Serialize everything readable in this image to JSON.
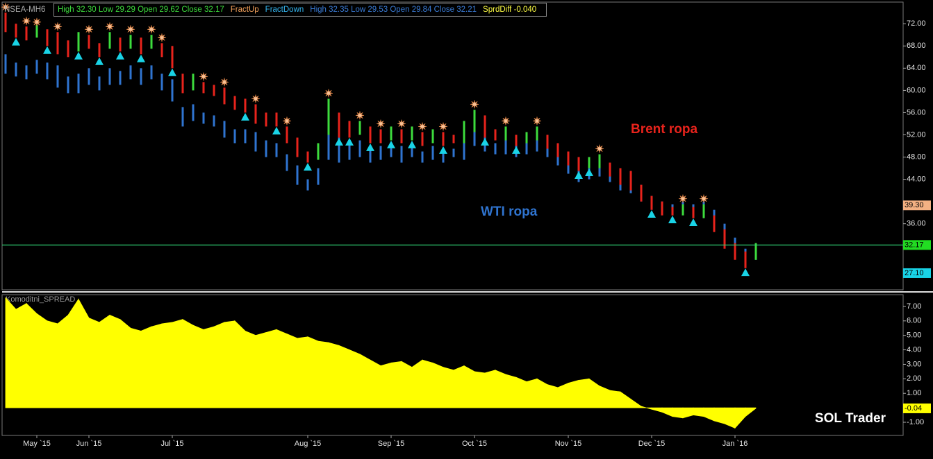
{
  "header": {
    "symbol": "NSEA-MH6",
    "items": [
      {
        "text": "High  32.30   Low  29.29   Open  29.62   Close  32.17",
        "color": "#3ddc3d"
      },
      {
        "text": "FractUp",
        "color": "#f7a35c"
      },
      {
        "text": "FractDown",
        "color": "#35b6f0"
      },
      {
        "text": "High  32.35   Low  29.53   Open  29.84   Close  32.21",
        "color": "#3a7bd5"
      },
      {
        "text": "SprdDiff  -0.040",
        "color": "#ffff44"
      }
    ]
  },
  "chart_data": [
    {
      "type": "hilo",
      "categories": [
        null,
        null,
        null,
        "May `15",
        null,
        null,
        null,
        null,
        "Jun `15",
        null,
        null,
        null,
        null,
        null,
        null,
        null,
        "Jul `15",
        null,
        null,
        null,
        null,
        null,
        null,
        null,
        null,
        null,
        null,
        null,
        null,
        "Aug `15",
        null,
        null,
        null,
        null,
        null,
        null,
        null,
        "Sep `15",
        null,
        null,
        null,
        null,
        null,
        null,
        null,
        "Oct `15",
        null,
        null,
        null,
        null,
        null,
        null,
        null,
        null,
        "Nov `15",
        null,
        null,
        null,
        null,
        null,
        null,
        null,
        "Dec `15",
        null,
        null,
        null,
        null,
        null,
        null,
        null,
        "Jan `16",
        null,
        null
      ],
      "series": [
        {
          "name": "Brent ropa",
          "color": "#e8231c",
          "up_color": "#3ddc3d",
          "high": [
            74,
            72,
            71.5,
            71.8,
            71,
            70.5,
            69,
            70.5,
            70,
            68.5,
            70.5,
            69.5,
            70,
            69.5,
            70,
            68.5,
            68,
            63,
            63,
            61.5,
            61,
            60.5,
            59,
            58.5,
            57.5,
            56,
            56,
            53.5,
            51.5,
            49,
            50.5,
            58.5,
            56,
            54.5,
            54.5,
            53.5,
            53,
            53.5,
            53,
            53.5,
            52.5,
            53,
            52.5,
            52,
            54.5,
            56.5,
            55.5,
            53,
            53.5,
            52,
            52.5,
            53.5,
            52,
            50.5,
            49,
            48,
            48,
            48.5,
            47,
            46,
            45.5,
            43,
            41,
            40,
            39,
            39.5,
            39,
            39.5,
            37.5,
            35,
            32.5,
            31,
            32.5
          ],
          "low": [
            70.5,
            69.5,
            69,
            69.5,
            68,
            66.5,
            66,
            67,
            67.5,
            66,
            67.5,
            67,
            67.5,
            66.5,
            67.5,
            66,
            64,
            59.5,
            60,
            59.5,
            59,
            57.5,
            56.5,
            56,
            54,
            53.5,
            53.5,
            50.5,
            48,
            47,
            47.5,
            52,
            51.5,
            51.5,
            52,
            50.5,
            50.5,
            51,
            50.5,
            51,
            50,
            50.5,
            50,
            50.5,
            50.5,
            52.5,
            51.5,
            51,
            51,
            50,
            50.5,
            51,
            49.5,
            48,
            46.5,
            45.5,
            46,
            46,
            44.5,
            43,
            42,
            40,
            38.5,
            37.5,
            37.5,
            37.5,
            37,
            37,
            34.5,
            31.5,
            29.5,
            28,
            29.5
          ]
        },
        {
          "name": "WTI ropa",
          "color": "#2f74d0",
          "high": [
            66.5,
            65,
            64.5,
            65.5,
            65,
            64.5,
            62.5,
            63,
            64,
            62.5,
            64,
            63.5,
            64.5,
            64,
            64.5,
            63,
            62,
            57,
            57.5,
            56,
            55.5,
            54.5,
            53,
            53,
            52.5,
            51,
            50.5,
            48.5,
            46.5,
            44,
            46,
            54,
            51.5,
            50.5,
            51,
            50,
            50,
            50.5,
            50,
            50.5,
            49,
            50,
            49.5,
            49.5,
            51.5,
            54,
            53,
            50.5,
            51,
            50,
            50.5,
            51.5,
            50.5,
            49,
            47.5,
            46,
            46,
            47,
            46,
            45,
            45,
            43,
            41,
            40,
            39.5,
            40,
            39.5,
            40,
            38.5,
            36,
            33.5,
            31.5,
            32.5
          ],
          "low": [
            63,
            62.5,
            62,
            63,
            62,
            60.5,
            59.5,
            59.5,
            61,
            60,
            61,
            61,
            62,
            61,
            62,
            60,
            58,
            53.5,
            54.5,
            54,
            53.5,
            51.5,
            50.5,
            50.5,
            49,
            48,
            48,
            45.5,
            43,
            42,
            43,
            47.5,
            47,
            47.5,
            48,
            47,
            47.5,
            48,
            47,
            48,
            47,
            47.5,
            47,
            48,
            47.5,
            50,
            49,
            48.5,
            48.5,
            48,
            48.5,
            49,
            48,
            46.5,
            45,
            43.5,
            44,
            44.5,
            43.5,
            42,
            41.5,
            40,
            38.5,
            38,
            38,
            38,
            37.5,
            37.5,
            35.5,
            32.5,
            31,
            28.5,
            29.5
          ]
        }
      ],
      "fractal_up": {
        "color": "#f8c49a",
        "values": [
          75,
          null,
          72.5,
          72.3,
          null,
          71.5,
          null,
          null,
          71,
          null,
          71.5,
          null,
          71,
          null,
          71,
          69.5,
          null,
          null,
          null,
          62.5,
          null,
          61.5,
          null,
          null,
          58.5,
          null,
          null,
          54.5,
          null,
          null,
          null,
          59.5,
          null,
          null,
          55.5,
          null,
          54,
          null,
          54,
          null,
          53.5,
          null,
          53.5,
          null,
          null,
          57.5,
          null,
          null,
          54.5,
          null,
          null,
          54.5,
          null,
          null,
          null,
          null,
          null,
          49.5,
          null,
          null,
          null,
          null,
          null,
          null,
          null,
          40.5,
          null,
          40.5,
          null,
          null,
          null,
          null,
          null
        ]
      },
      "fractal_down": {
        "color": "#19d3e6",
        "values": [
          null,
          68.7,
          null,
          null,
          67.2,
          null,
          null,
          66.2,
          null,
          65.2,
          null,
          66.2,
          null,
          65.7,
          null,
          null,
          63.2,
          null,
          null,
          null,
          null,
          null,
          null,
          55.2,
          null,
          null,
          52.7,
          null,
          null,
          46.2,
          null,
          null,
          50.7,
          50.7,
          null,
          49.7,
          null,
          50.2,
          null,
          50.2,
          null,
          null,
          49.2,
          null,
          null,
          null,
          50.7,
          null,
          null,
          49.2,
          null,
          null,
          null,
          null,
          null,
          44.7,
          45.2,
          null,
          null,
          null,
          null,
          null,
          37.7,
          null,
          36.7,
          null,
          36.2,
          null,
          null,
          null,
          null,
          27.2,
          null
        ]
      },
      "hline": {
        "value": 32.17,
        "color": "#2ecc71"
      },
      "price_markers": [
        {
          "value": 39.3,
          "label": "39.30",
          "color": "#f4b183"
        },
        {
          "value": 32.17,
          "label": "32.17",
          "color": "#22dd22"
        },
        {
          "value": 27.1,
          "label": "27.10",
          "color": "#19d3e6"
        }
      ],
      "ylim": [
        24.1,
        75.9
      ],
      "yticks": [
        {
          "value": 72,
          "label": "72.00"
        },
        {
          "value": 68,
          "label": "68.00"
        },
        {
          "value": 64,
          "label": "64.00"
        },
        {
          "value": 60,
          "label": "60.00"
        },
        {
          "value": 56,
          "label": "56.00"
        },
        {
          "value": 52,
          "label": "52.00"
        },
        {
          "value": 48,
          "label": "48.00"
        },
        {
          "value": 44,
          "label": "44.00"
        },
        {
          "value": 36,
          "label": "36.00"
        }
      ]
    },
    {
      "type": "area",
      "title": "Komoditni_SPREAD",
      "color": "#ffff00",
      "watermark": "SOL Trader",
      "values": [
        7.6,
        6.8,
        7.2,
        6.5,
        6,
        5.8,
        6.4,
        7.5,
        6.2,
        5.9,
        6.4,
        6.1,
        5.5,
        5.3,
        5.6,
        5.8,
        5.9,
        6.1,
        5.7,
        5.4,
        5.6,
        5.9,
        6,
        5.3,
        5,
        5.2,
        5.4,
        5.1,
        4.8,
        4.9,
        4.6,
        4.5,
        4.3,
        4,
        3.7,
        3.3,
        2.9,
        3.1,
        3.2,
        2.8,
        3.3,
        3.1,
        2.8,
        2.6,
        2.9,
        2.5,
        2.4,
        2.6,
        2.3,
        2.1,
        1.8,
        2,
        1.6,
        1.4,
        1.7,
        1.9,
        2,
        1.5,
        1.2,
        1.1,
        0.6,
        0.1,
        -0.1,
        -0.3,
        -0.6,
        -0.7,
        -0.5,
        -0.6,
        -0.9,
        -1.1,
        -1.4,
        -0.6,
        -0.04
      ],
      "marker": {
        "value": -0.04,
        "label": "-0.04",
        "color": "#ffff00"
      },
      "ylim": [
        -1.91,
        7.81
      ],
      "yticks": [
        {
          "value": 7,
          "label": "7.00"
        },
        {
          "value": 6,
          "label": "6.00"
        },
        {
          "value": 5,
          "label": "5.00"
        },
        {
          "value": 4,
          "label": "4.00"
        },
        {
          "value": 3,
          "label": "3.00"
        },
        {
          "value": 2,
          "label": "2.00"
        },
        {
          "value": 1,
          "label": "1.00"
        },
        {
          "value": -1,
          "label": "-1.00"
        }
      ]
    }
  ]
}
